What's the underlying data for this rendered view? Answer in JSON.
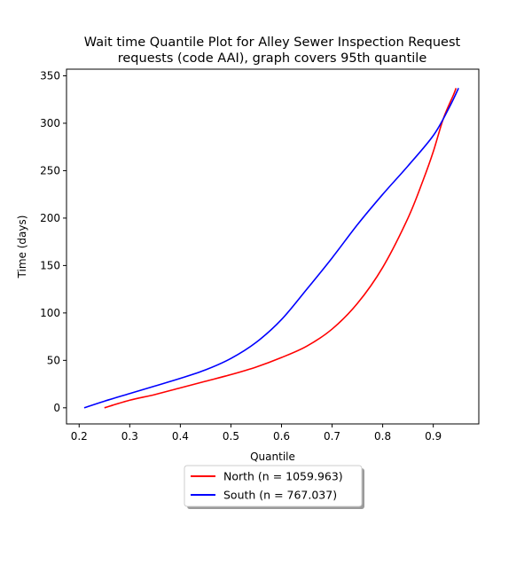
{
  "chart_data": {
    "type": "line",
    "title": "Wait time Quantile Plot for Alley Sewer Inspection Request requests (code AAI), graph covers 95th quantile",
    "title_lines": [
      "Wait time Quantile Plot for Alley Sewer Inspection Request",
      "requests (code AAI), graph covers 95th quantile"
    ],
    "xlabel": "Quantile",
    "ylabel": "Time (days)",
    "xlim": [
      0.175,
      0.99
    ],
    "ylim": [
      -17,
      357
    ],
    "xticks": [
      0.2,
      0.3,
      0.4,
      0.5,
      0.6,
      0.7,
      0.8,
      0.9
    ],
    "xtick_labels": [
      "0.2",
      "0.3",
      "0.4",
      "0.5",
      "0.6",
      "0.7",
      "0.8",
      "0.9"
    ],
    "yticks": [
      0,
      50,
      100,
      150,
      200,
      250,
      300,
      350
    ],
    "ytick_labels": [
      "0",
      "50",
      "100",
      "150",
      "200",
      "250",
      "300",
      "350"
    ],
    "grid": false,
    "legend_position": "below",
    "series": [
      {
        "name": "North (n = 1059.963)",
        "color": "#ff0000",
        "x": [
          0.25,
          0.3,
          0.35,
          0.4,
          0.45,
          0.5,
          0.55,
          0.6,
          0.65,
          0.7,
          0.75,
          0.8,
          0.85,
          0.88,
          0.9,
          0.92,
          0.94,
          0.945
        ],
        "y": [
          0,
          8,
          14,
          21,
          28,
          35,
          43,
          53,
          65,
          83,
          110,
          148,
          200,
          240,
          270,
          305,
          330,
          337
        ]
      },
      {
        "name": "South (n = 767.037)",
        "color": "#0000ff",
        "x": [
          0.21,
          0.25,
          0.3,
          0.35,
          0.4,
          0.45,
          0.5,
          0.55,
          0.6,
          0.65,
          0.7,
          0.75,
          0.8,
          0.85,
          0.9,
          0.93,
          0.95
        ],
        "y": [
          0,
          7,
          15,
          23,
          31,
          40,
          52,
          69,
          93,
          125,
          158,
          193,
          225,
          255,
          287,
          315,
          337
        ]
      }
    ]
  }
}
